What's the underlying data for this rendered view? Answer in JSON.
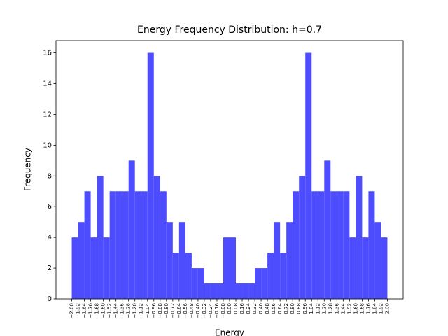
{
  "chart_data": {
    "type": "histogram",
    "title": "Energy Frequency Distribution: h=0.7",
    "xlabel": "Energy",
    "ylabel": "Frequency",
    "color": "#4d4dff",
    "bins": [
      -2,
      -1.92,
      -1.84,
      -1.76,
      -1.68,
      -1.6,
      -1.52,
      -1.44,
      -1.36,
      -1.28,
      -1.2,
      -1.12,
      -1.04,
      -0.96,
      -0.88,
      -0.8,
      -0.72,
      -0.64,
      -0.56,
      -0.48,
      -0.4,
      -0.32,
      -0.24,
      -0.16,
      -0.08,
      0,
      0.08,
      0.16,
      0.24,
      0.32,
      0.4,
      0.48,
      0.56,
      0.64,
      0.72,
      0.8,
      0.88,
      0.96,
      1.04,
      1.12,
      1.2,
      1.28,
      1.36,
      1.44,
      1.52,
      1.6,
      1.68,
      1.76,
      1.84,
      1.92,
      2
    ],
    "values": [
      4,
      5,
      7,
      4,
      8,
      4,
      7,
      7,
      7,
      9,
      7,
      7,
      16,
      8,
      7,
      5,
      3,
      5,
      3,
      2,
      2,
      1,
      1,
      1,
      4,
      4,
      1,
      1,
      1,
      2,
      2,
      3,
      5,
      3,
      5,
      7,
      8,
      16,
      7,
      7,
      9,
      7,
      7,
      7,
      4,
      8,
      4,
      7,
      5,
      4
    ],
    "xlim": [
      -2.2,
      2.2
    ],
    "ylim": [
      0,
      16.8
    ],
    "yticks": [
      0,
      2,
      4,
      6,
      8,
      10,
      12,
      14,
      16
    ],
    "xticks": [
      {
        "value": -2,
        "label": "−2.00"
      },
      {
        "value": -1.92,
        "label": "−1.92"
      },
      {
        "value": -1.84,
        "label": "−1.84"
      },
      {
        "value": -1.76,
        "label": "−1.76"
      },
      {
        "value": -1.68,
        "label": "−1.68"
      },
      {
        "value": -1.6,
        "label": "−1.60"
      },
      {
        "value": -1.52,
        "label": "−1.52"
      },
      {
        "value": -1.44,
        "label": "−1.44"
      },
      {
        "value": -1.36,
        "label": "−1.36"
      },
      {
        "value": -1.28,
        "label": "−1.28"
      },
      {
        "value": -1.2,
        "label": "−1.20"
      },
      {
        "value": -1.12,
        "label": "−1.12"
      },
      {
        "value": -1.04,
        "label": "−1.04"
      },
      {
        "value": -0.96,
        "label": "−0.96"
      },
      {
        "value": -0.88,
        "label": "−0.88"
      },
      {
        "value": -0.8,
        "label": "−0.80"
      },
      {
        "value": -0.72,
        "label": "−0.72"
      },
      {
        "value": -0.64,
        "label": "−0.64"
      },
      {
        "value": -0.56,
        "label": "−0.56"
      },
      {
        "value": -0.48,
        "label": "−0.48"
      },
      {
        "value": -0.4,
        "label": "−0.40"
      },
      {
        "value": -0.32,
        "label": "−0.32"
      },
      {
        "value": -0.24,
        "label": "−0.24"
      },
      {
        "value": -0.16,
        "label": "−0.16"
      },
      {
        "value": -0.08,
        "label": "−0.08"
      },
      {
        "value": 0,
        "label": "0.00"
      },
      {
        "value": 0.08,
        "label": "0.08"
      },
      {
        "value": 0.16,
        "label": "0.16"
      },
      {
        "value": 0.24,
        "label": "0.24"
      },
      {
        "value": 0.32,
        "label": "0.32"
      },
      {
        "value": 0.4,
        "label": "0.40"
      },
      {
        "value": 0.48,
        "label": "0.48"
      },
      {
        "value": 0.56,
        "label": "0.56"
      },
      {
        "value": 0.64,
        "label": "0.64"
      },
      {
        "value": 0.72,
        "label": "0.72"
      },
      {
        "value": 0.8,
        "label": "0.80"
      },
      {
        "value": 0.88,
        "label": "0.88"
      },
      {
        "value": 0.96,
        "label": "0.96"
      },
      {
        "value": 1.04,
        "label": "1.04"
      },
      {
        "value": 1.12,
        "label": "1.12"
      },
      {
        "value": 1.2,
        "label": "1.20"
      },
      {
        "value": 1.28,
        "label": "1.28"
      },
      {
        "value": 1.36,
        "label": "1.36"
      },
      {
        "value": 1.44,
        "label": "1.44"
      },
      {
        "value": 1.52,
        "label": "1.52"
      },
      {
        "value": 1.6,
        "label": "1.60"
      },
      {
        "value": 1.68,
        "label": "1.68"
      },
      {
        "value": 1.76,
        "label": "1.76"
      },
      {
        "value": 1.84,
        "label": "1.84"
      },
      {
        "value": 1.92,
        "label": "1.92"
      },
      {
        "value": 2,
        "label": "2.00"
      }
    ]
  }
}
